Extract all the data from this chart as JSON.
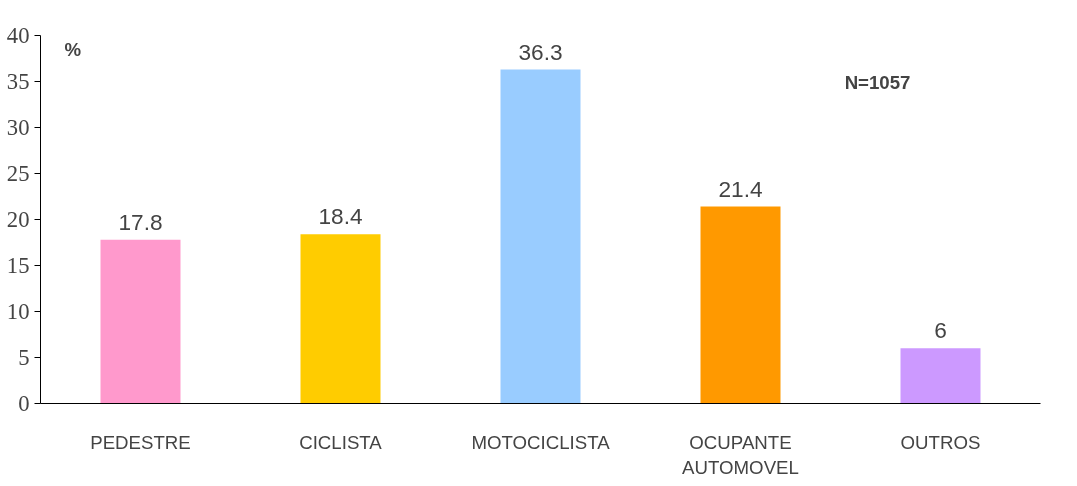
{
  "chart_data": {
    "type": "bar",
    "categories": [
      "PEDESTRE",
      "CICLISTA",
      "MOTOCICLISTA",
      "OCUPANTE\nAUTOMOVEL",
      "OUTROS"
    ],
    "values": [
      17.8,
      18.4,
      36.3,
      21.4,
      6
    ],
    "colors": [
      "#ff99cc",
      "#ffcc00",
      "#99ccff",
      "#ff9900",
      "#cc99ff"
    ],
    "ylim": [
      0,
      40
    ],
    "yticks": [
      0,
      5,
      10,
      15,
      20,
      25,
      30,
      35,
      40
    ],
    "grid": false,
    "data_labels": true,
    "annotations": [
      "%",
      "N=1057"
    ]
  }
}
